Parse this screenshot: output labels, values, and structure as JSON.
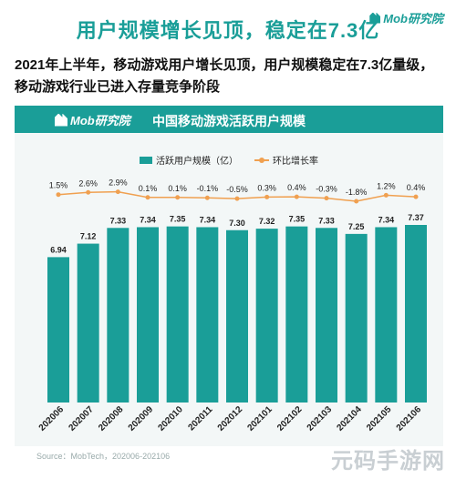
{
  "header": {
    "title": "用户规模增长见顶，稳定在7.3亿",
    "logo_text": "Mob研究院",
    "description": "2021年上半年，移动游戏用户增长见顶，用户规模稳定在7.3亿量级，移动游戏行业已进入存量竞争阶段"
  },
  "panel": {
    "logo_text": "Mob研究院"
  },
  "chart_data": {
    "type": "bar",
    "title": "中国移动游戏活跃用户规模",
    "categories": [
      "202006",
      "202007",
      "202008",
      "202009",
      "202010",
      "202011",
      "202012",
      "202101",
      "202102",
      "202103",
      "202104",
      "202105",
      "202106"
    ],
    "series": [
      {
        "name": "活跃用户规模（亿）",
        "type": "bar",
        "values": [
          6.94,
          7.12,
          7.33,
          7.34,
          7.35,
          7.34,
          7.3,
          7.32,
          7.35,
          7.33,
          7.25,
          7.34,
          7.37
        ]
      },
      {
        "name": "环比增长率",
        "type": "line",
        "values": [
          1.5,
          2.6,
          2.9,
          0.1,
          0.1,
          -0.1,
          -0.5,
          0.3,
          0.4,
          -0.3,
          -1.8,
          1.2,
          0.4
        ]
      }
    ],
    "bar_labels": [
      "6.94",
      "7.12",
      "7.33",
      "7.34",
      "7.35",
      "7.34",
      "7.30",
      "7.32",
      "7.35",
      "7.33",
      "7.25",
      "7.34",
      "7.37"
    ],
    "line_labels": [
      "1.5%",
      "2.6%",
      "2.9%",
      "0.1%",
      "0.1%",
      "-0.1%",
      "-0.5%",
      "0.3%",
      "0.4%",
      "-0.3%",
      "-1.8%",
      "1.2%",
      "0.4%"
    ],
    "legend": "top-center",
    "grid": false,
    "colors": {
      "bar": "#1a9e98",
      "line": "#f0a050"
    }
  },
  "footer": {
    "source": "Source：MobTech，202006-202106",
    "watermark": "元码手游网"
  }
}
